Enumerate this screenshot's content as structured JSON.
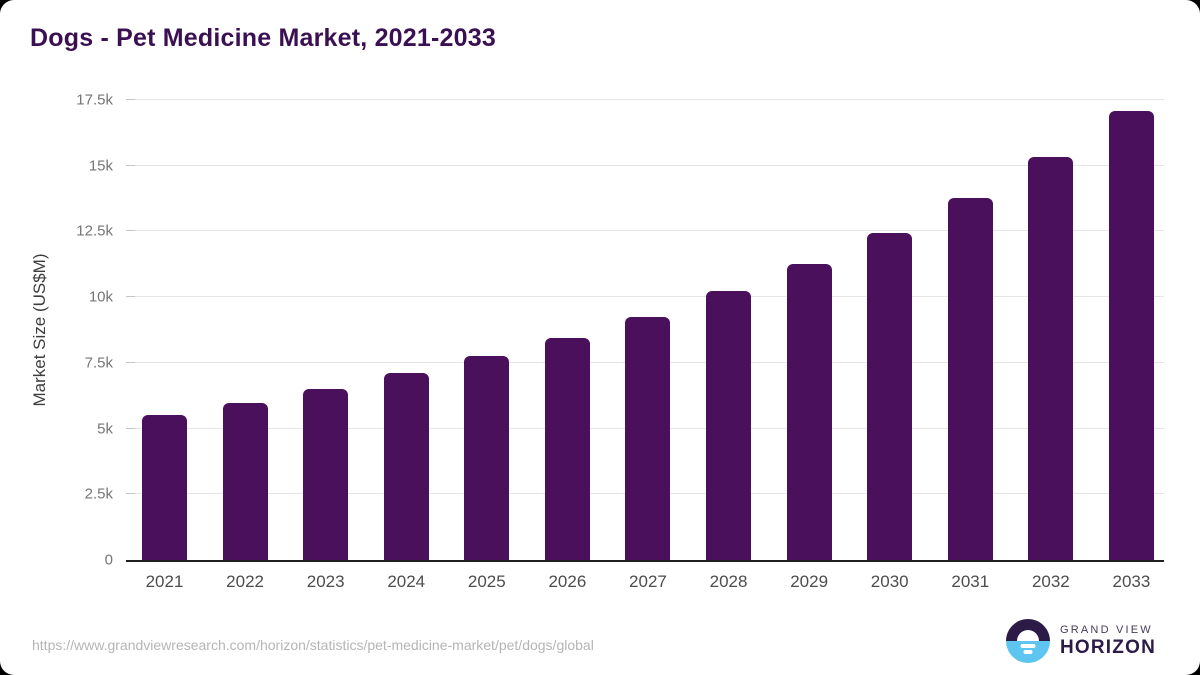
{
  "chart_data": {
    "type": "bar",
    "title": "Dogs - Pet Medicine Market, 2021-2033",
    "categories": [
      "2021",
      "2022",
      "2023",
      "2024",
      "2025",
      "2026",
      "2027",
      "2028",
      "2029",
      "2030",
      "2031",
      "2032",
      "2033"
    ],
    "values": [
      5520,
      5980,
      6490,
      7110,
      7780,
      8450,
      9240,
      10220,
      11260,
      12450,
      13780,
      15330,
      17080
    ],
    "xlabel": "",
    "ylabel": "Market Size (US$M)",
    "ylim": [
      0,
      17500
    ],
    "yticks": [
      {
        "value": 0,
        "label": "0"
      },
      {
        "value": 2500,
        "label": "2.5k"
      },
      {
        "value": 5000,
        "label": "5k"
      },
      {
        "value": 7500,
        "label": "7.5k"
      },
      {
        "value": 10000,
        "label": "10k"
      },
      {
        "value": 12500,
        "label": "12.5k"
      },
      {
        "value": 15000,
        "label": "15k"
      },
      {
        "value": 17500,
        "label": "17.5k"
      }
    ],
    "grid": true,
    "legend": false
  },
  "colors": {
    "bar": "#4a105c",
    "title": "#3b1053",
    "gridline": "#e6e6e6",
    "axis_line": "#1f1f1f",
    "y_tick_text": "#757575",
    "x_tick_text": "#4d4d4d",
    "footer_url_text": "#b5b5b5",
    "logo_purple": "#2d1b47",
    "logo_blue": "#5ec4f0"
  },
  "footer": {
    "source_url": "https://www.grandviewresearch.com/horizon/statistics/pet-medicine-market/pet/dogs/global",
    "logo": {
      "line1": "GRAND VIEW",
      "line2": "HORIZON"
    }
  }
}
